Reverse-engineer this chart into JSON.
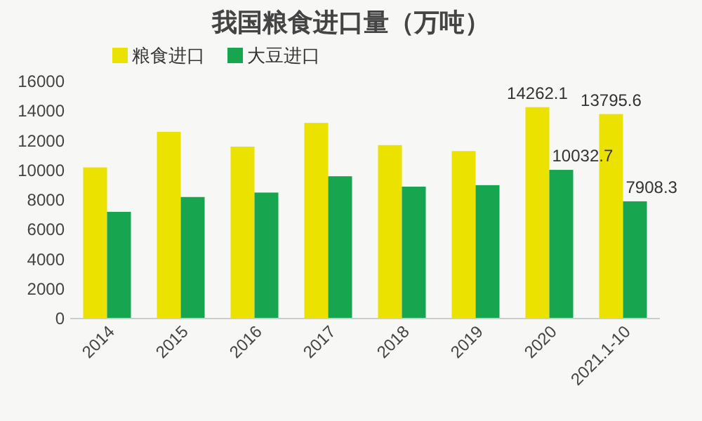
{
  "chart_data": {
    "type": "bar",
    "title": "我国粮食进口量（万吨）",
    "categories": [
      "2014",
      "2015",
      "2016",
      "2017",
      "2018",
      "2019",
      "2020",
      "2021.1-10"
    ],
    "series": [
      {
        "name": "粮食进口",
        "color": "#ece200",
        "values": [
          10200,
          12600,
          11600,
          13200,
          11700,
          11300,
          14262.1,
          13795.6
        ],
        "value_labels": [
          null,
          null,
          null,
          null,
          null,
          null,
          "14262.1",
          "13795.6"
        ]
      },
      {
        "name": "大豆进口",
        "color": "#17a550",
        "values": [
          7200,
          8200,
          8500,
          9600,
          8900,
          9000,
          10032.7,
          7908.3
        ],
        "value_labels": [
          null,
          null,
          null,
          null,
          null,
          null,
          "10032.7",
          "7908.3"
        ]
      }
    ],
    "ylim": [
      0,
      16000
    ],
    "yticks": [
      0,
      2000,
      4000,
      6000,
      8000,
      10000,
      12000,
      14000,
      16000
    ],
    "grid": false,
    "legend": "top left"
  }
}
